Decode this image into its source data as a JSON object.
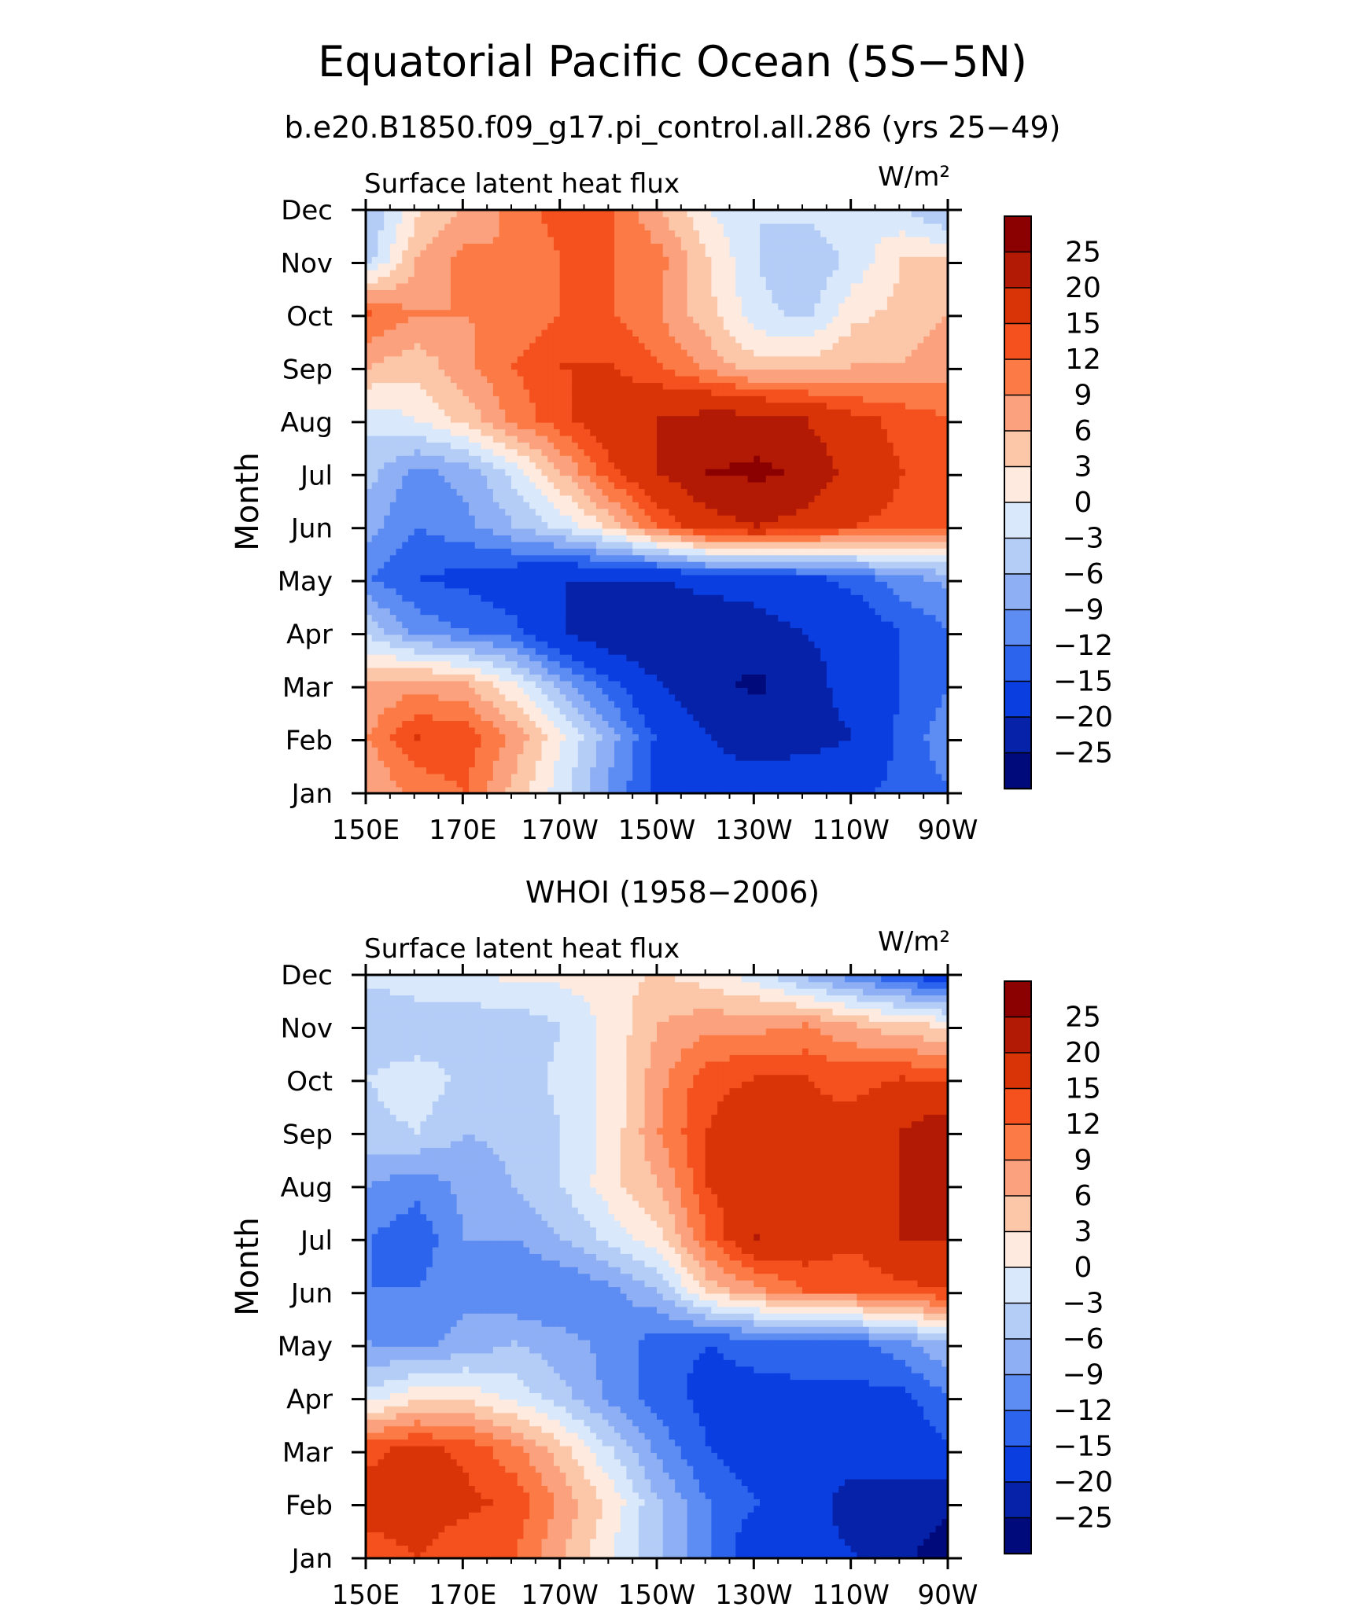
{
  "figure": {
    "title": "Equatorial Pacific Ocean (5S−5N)",
    "colorbar_levels": [
      "25",
      "20",
      "15",
      "12",
      "9",
      "6",
      "3",
      "0",
      "−3",
      "−6",
      "−9",
      "−12",
      "−15",
      "−20",
      "−25"
    ],
    "colorbar_colors": [
      "#8b0000",
      "#b31a05",
      "#d93408",
      "#f4511e",
      "#fb7a46",
      "#fca17d",
      "#fcc7a8",
      "#feeade",
      "#d9e8fb",
      "#b4cdf7",
      "#8faff5",
      "#5d8df2",
      "#2c64ee",
      "#0a3ee0",
      "#0622a8",
      "#000a7a"
    ],
    "color_levels_numeric": [
      -25,
      -20,
      -15,
      -12,
      -9,
      -6,
      -3,
      0,
      3,
      6,
      9,
      12,
      15,
      20,
      25
    ]
  },
  "chart_data": [
    {
      "type": "heatmap",
      "title": "b.e20.B1850.f09_g17.pi_control.all.286 (yrs 25−49)",
      "left_label": "Surface latent heat flux",
      "units": "W/m²",
      "xlabel": "",
      "ylabel": "Month",
      "x_tick_labels": [
        "150E",
        "170E",
        "170W",
        "150W",
        "130W",
        "110W",
        "90W"
      ],
      "y_tick_labels": [
        "Jan",
        "Feb",
        "Mar",
        "Apr",
        "May",
        "Jun",
        "Jul",
        "Aug",
        "Sep",
        "Oct",
        "Nov",
        "Dec"
      ],
      "x_range_deg_east": [
        150,
        270
      ],
      "y_range_month": [
        1,
        12
      ],
      "x_grid_deg_east": [
        150,
        160,
        170,
        180,
        190,
        200,
        210,
        220,
        230,
        240,
        250,
        260,
        270
      ],
      "y_grid": [
        "Jan",
        "Feb",
        "Mar",
        "Apr",
        "May",
        "Jun",
        "Jul",
        "Aug",
        "Sep",
        "Oct",
        "Nov",
        "Dec"
      ],
      "values": [
        [
          6,
          10,
          12,
          5,
          -2,
          -10,
          -16,
          -18,
          -18,
          -16,
          -16,
          -14,
          -12
        ],
        [
          9,
          15,
          14,
          8,
          0,
          -8,
          -16,
          -20,
          -22,
          -22,
          -20,
          -14,
          -10
        ],
        [
          6,
          8,
          6,
          0,
          -8,
          -14,
          -20,
          -24,
          -26,
          -22,
          -18,
          -15,
          -12
        ],
        [
          -4,
          -10,
          -12,
          -14,
          -20,
          -24,
          -25,
          -24,
          -22,
          -20,
          -18,
          -15,
          -12
        ],
        [
          -12,
          -15,
          -16,
          -18,
          -20,
          -20,
          -20,
          -18,
          -18,
          -16,
          -14,
          -10,
          -8
        ],
        [
          -8,
          -12,
          -10,
          -6,
          -2,
          4,
          12,
          18,
          20,
          18,
          15,
          14,
          12
        ],
        [
          -5,
          -10,
          -8,
          -2,
          6,
          14,
          20,
          25,
          26,
          24,
          18,
          15,
          12
        ],
        [
          -2,
          0,
          4,
          10,
          14,
          18,
          20,
          22,
          22,
          20,
          16,
          14,
          12
        ],
        [
          6,
          4,
          8,
          12,
          15,
          15,
          12,
          8,
          4,
          4,
          6,
          6,
          8
        ],
        [
          12,
          9,
          9,
          10,
          12,
          12,
          9,
          4,
          -2,
          -4,
          2,
          4,
          6
        ],
        [
          -4,
          6,
          10,
          9,
          12,
          12,
          10,
          3,
          -3,
          -6,
          -2,
          3,
          4
        ],
        [
          -6,
          2,
          6,
          10,
          14,
          12,
          6,
          0,
          -3,
          -2,
          0,
          -3,
          -8
        ]
      ]
    },
    {
      "type": "heatmap",
      "title": "WHOI (1958−2006)",
      "left_label": "Surface latent heat flux",
      "units": "W/m²",
      "xlabel": "",
      "ylabel": "Month",
      "x_tick_labels": [
        "150E",
        "170E",
        "170W",
        "150W",
        "130W",
        "110W",
        "90W"
      ],
      "y_tick_labels": [
        "Jan",
        "Feb",
        "Mar",
        "Apr",
        "May",
        "Jun",
        "Jul",
        "Aug",
        "Sep",
        "Oct",
        "Nov",
        "Dec"
      ],
      "x_range_deg_east": [
        150,
        270
      ],
      "y_range_month": [
        1,
        12
      ],
      "x_grid_deg_east": [
        150,
        160,
        170,
        180,
        190,
        200,
        210,
        220,
        230,
        240,
        250,
        260,
        270
      ],
      "y_grid": [
        "Jan",
        "Feb",
        "Mar",
        "Apr",
        "May",
        "Jun",
        "Jul",
        "Aug",
        "Sep",
        "Oct",
        "Nov",
        "Dec"
      ],
      "values": [
        [
          13,
          15,
          12,
          12,
          6,
          0,
          -6,
          -12,
          -18,
          -18,
          -20,
          -24,
          -28
        ],
        [
          17,
          18,
          16,
          14,
          8,
          2,
          -6,
          -12,
          -15,
          -18,
          -22,
          -22,
          -24
        ],
        [
          14,
          16,
          14,
          10,
          4,
          -3,
          -10,
          -15,
          -18,
          -18,
          -18,
          -18,
          -15
        ],
        [
          -2,
          2,
          2,
          -1,
          -5,
          -10,
          -14,
          -16,
          -16,
          -16,
          -16,
          -16,
          -12
        ],
        [
          -9,
          -10,
          -8,
          -6,
          -8,
          -10,
          -14,
          -15,
          -14,
          -13,
          -13,
          -10,
          -6
        ],
        [
          -12,
          -12,
          -10,
          -12,
          -12,
          -10,
          -6,
          4,
          8,
          12,
          12,
          14,
          15
        ],
        [
          -12,
          -14,
          -9,
          -9,
          -6,
          -2,
          2,
          12,
          20,
          18,
          16,
          20,
          20
        ],
        [
          -9,
          -11,
          -8,
          -6,
          -3,
          2,
          6,
          15,
          18,
          16,
          18,
          20,
          20
        ],
        [
          -4,
          -3,
          -6,
          -5,
          -3,
          1,
          9,
          15,
          18,
          16,
          16,
          20,
          24
        ],
        [
          -3,
          -1,
          -4,
          -5,
          -2,
          1,
          8,
          14,
          15,
          15,
          14,
          15,
          14
        ],
        [
          -6,
          -6,
          -5,
          -5,
          -3,
          1,
          6,
          8,
          8,
          9,
          6,
          4,
          2
        ],
        [
          -2,
          0,
          0,
          1,
          1,
          2,
          3,
          1,
          -2,
          -8,
          -12,
          -16,
          -20
        ]
      ]
    }
  ]
}
